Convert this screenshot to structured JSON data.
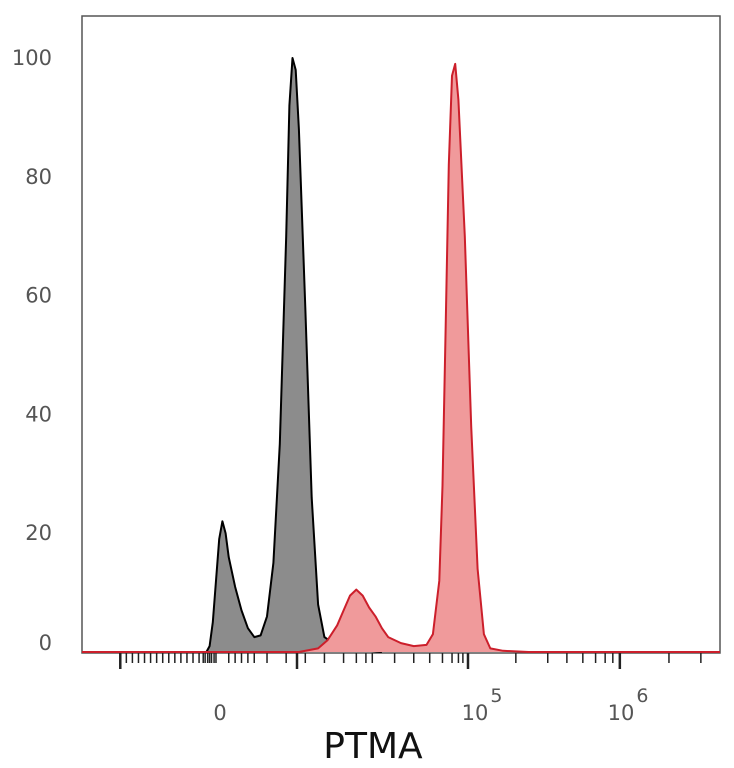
{
  "chart_data": {
    "type": "area",
    "title": "",
    "xlabel": "PTMA",
    "ylabel": "",
    "x_scale": "biexponential",
    "x_tick_labels": [
      {
        "base": "0",
        "exp": ""
      },
      {
        "base": "10",
        "exp": "5"
      },
      {
        "base": "10",
        "exp": "6"
      }
    ],
    "y_ticks": [
      0,
      20,
      40,
      60,
      80,
      100
    ],
    "ylim": [
      0,
      100
    ],
    "grid": false,
    "legend": "none",
    "series": [
      {
        "color": "#000000",
        "fill": "#8c8c8c",
        "points": [
          [
            0.195,
            0
          ],
          [
            0.2,
            1
          ],
          [
            0.205,
            5
          ],
          [
            0.21,
            12
          ],
          [
            0.215,
            19
          ],
          [
            0.22,
            22
          ],
          [
            0.225,
            20
          ],
          [
            0.23,
            16
          ],
          [
            0.24,
            11
          ],
          [
            0.25,
            7
          ],
          [
            0.26,
            4
          ],
          [
            0.27,
            2.5
          ],
          [
            0.28,
            2.8
          ],
          [
            0.29,
            6
          ],
          [
            0.3,
            15
          ],
          [
            0.31,
            35
          ],
          [
            0.32,
            70
          ],
          [
            0.325,
            92
          ],
          [
            0.33,
            100
          ],
          [
            0.335,
            98
          ],
          [
            0.34,
            88
          ],
          [
            0.35,
            58
          ],
          [
            0.36,
            26
          ],
          [
            0.37,
            8
          ],
          [
            0.38,
            2.5
          ],
          [
            0.4,
            1
          ],
          [
            0.43,
            0.4
          ],
          [
            0.47,
            0
          ]
        ]
      },
      {
        "color": "#cc1f2b",
        "fill": "#f09a9b",
        "points": [
          [
            0.0,
            0
          ],
          [
            0.34,
            0
          ],
          [
            0.37,
            0.6
          ],
          [
            0.385,
            2
          ],
          [
            0.4,
            4.5
          ],
          [
            0.41,
            7
          ],
          [
            0.42,
            9.5
          ],
          [
            0.43,
            10.5
          ],
          [
            0.44,
            9.5
          ],
          [
            0.45,
            7.5
          ],
          [
            0.46,
            6
          ],
          [
            0.47,
            4
          ],
          [
            0.48,
            2.5
          ],
          [
            0.5,
            1.5
          ],
          [
            0.52,
            1
          ],
          [
            0.54,
            1.2
          ],
          [
            0.55,
            3
          ],
          [
            0.56,
            12
          ],
          [
            0.565,
            28
          ],
          [
            0.57,
            55
          ],
          [
            0.575,
            82
          ],
          [
            0.58,
            97
          ],
          [
            0.585,
            99
          ],
          [
            0.59,
            93
          ],
          [
            0.6,
            70
          ],
          [
            0.61,
            38
          ],
          [
            0.62,
            14
          ],
          [
            0.63,
            3
          ],
          [
            0.64,
            0.6
          ],
          [
            0.66,
            0.2
          ],
          [
            0.7,
            0
          ],
          [
            1.0,
            0
          ]
        ]
      }
    ]
  }
}
